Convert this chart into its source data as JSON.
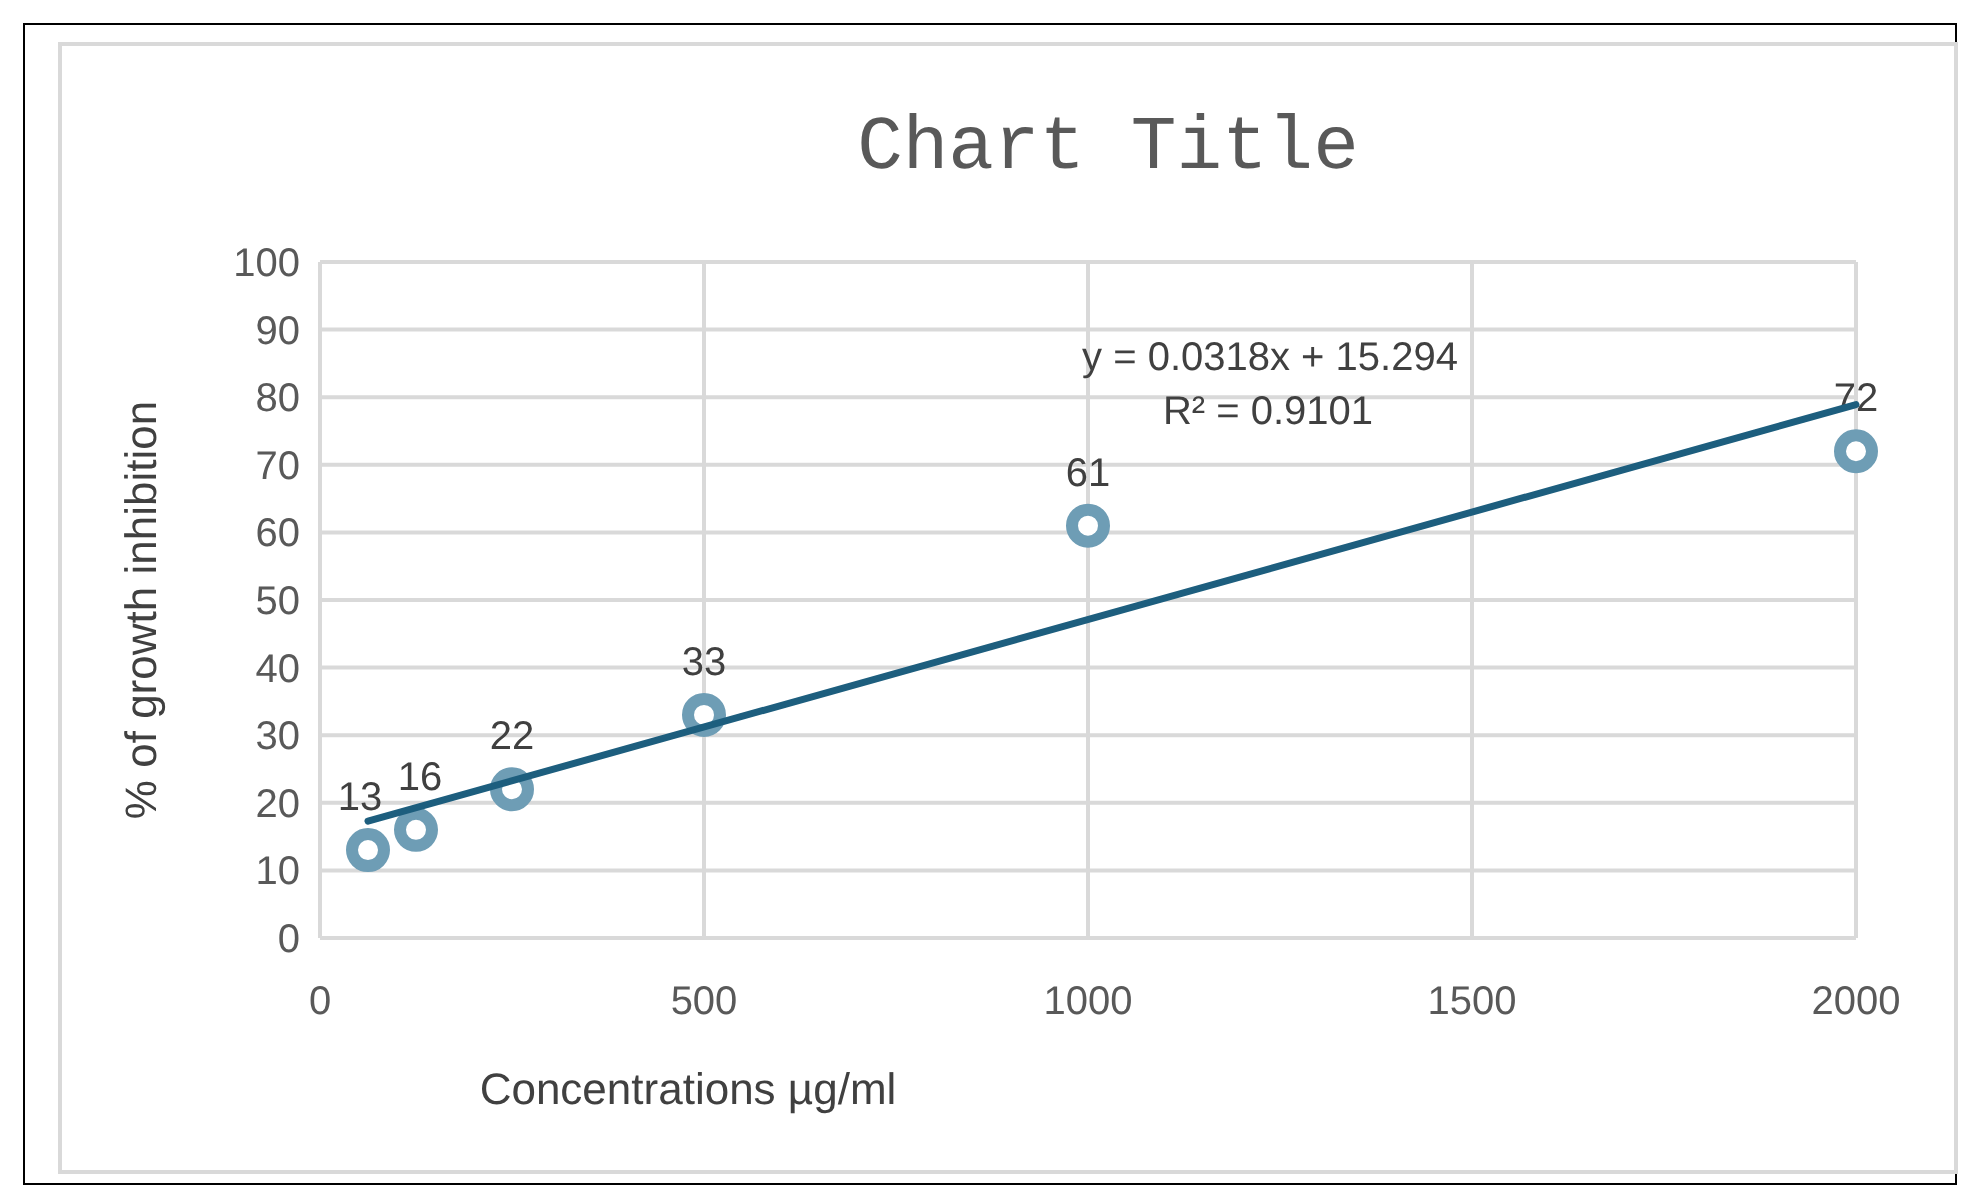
{
  "chart_data": {
    "type": "scatter",
    "title": "Chart Title",
    "xlabel": "Concentrations µg/ml",
    "ylabel": "% of growth inhibition",
    "x": [
      62.5,
      125,
      250,
      500,
      1000,
      2000
    ],
    "series": [
      {
        "color": "#6e9db5",
        "values": [
          13,
          16,
          22,
          33,
          61,
          72
        ],
        "value_labels": [
          "13",
          "16",
          "22",
          "33",
          "61",
          "72"
        ],
        "marker": "circle"
      },
      {
        "type": "line",
        "color": "#1d5e7e",
        "x": [
          62.5,
          2000
        ],
        "values": [
          17.3,
          78.9
        ]
      }
    ],
    "annotations": [
      "y = 0.0318x + 15.294",
      "R² = 0.9101"
    ],
    "xlim": [
      0,
      2000
    ],
    "xticks": [
      0,
      500,
      1000,
      1500,
      2000
    ],
    "ylim": [
      0,
      100
    ],
    "yticks": [
      0,
      10,
      20,
      30,
      40,
      50,
      60,
      70,
      80,
      90,
      100
    ],
    "grid": true
  }
}
